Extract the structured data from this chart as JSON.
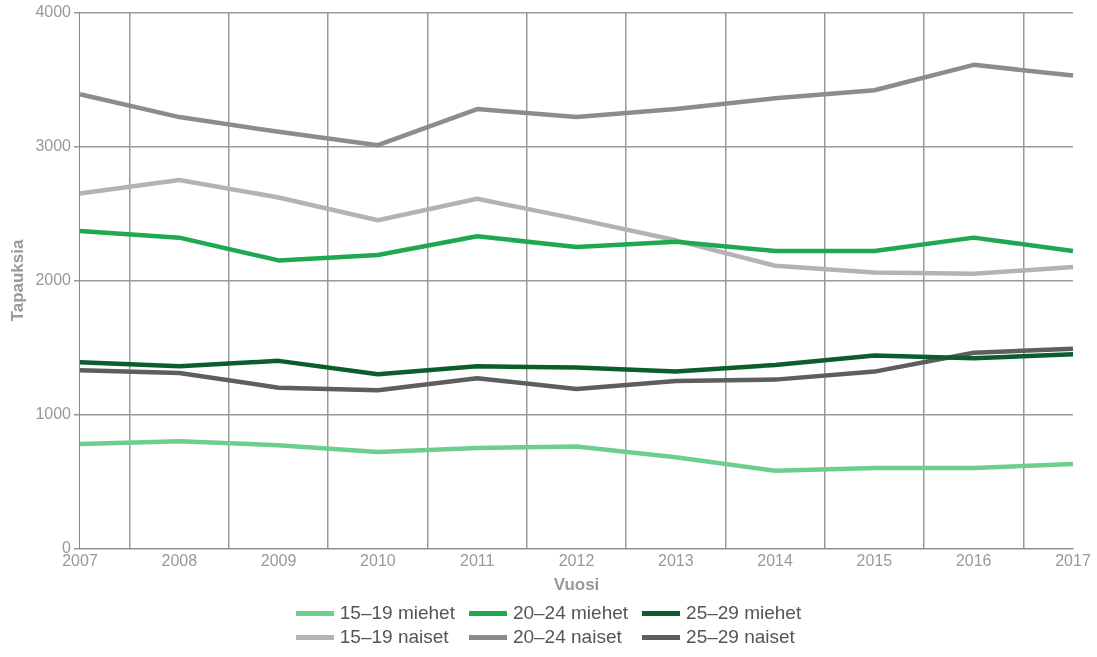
{
  "chart_data": {
    "type": "line",
    "xlabel": "Vuosi",
    "ylabel": "Tapauksia",
    "categories": [
      "2007",
      "2008",
      "2009",
      "2010",
      "2011",
      "2012",
      "2013",
      "2014",
      "2015",
      "2016",
      "2017"
    ],
    "series": [
      {
        "name": "15–19 miehet",
        "color": "#6dcf8f",
        "values": [
          780,
          800,
          770,
          720,
          750,
          760,
          680,
          580,
          600,
          600,
          630
        ]
      },
      {
        "name": "20–24 miehet",
        "color": "#1fa84f",
        "values": [
          2370,
          2320,
          2150,
          2190,
          2330,
          2250,
          2290,
          2220,
          2220,
          2320,
          2220
        ]
      },
      {
        "name": "25–29 miehet",
        "color": "#0b5e2b",
        "values": [
          1390,
          1360,
          1400,
          1300,
          1360,
          1350,
          1320,
          1370,
          1440,
          1420,
          1450
        ]
      },
      {
        "name": "15–19 naiset",
        "color": "#b3b3b3",
        "values": [
          2650,
          2750,
          2620,
          2450,
          2610,
          2460,
          2300,
          2110,
          2060,
          2050,
          2100
        ]
      },
      {
        "name": "20–24 naiset",
        "color": "#8c8c8c",
        "values": [
          3390,
          3220,
          3110,
          3010,
          3280,
          3220,
          3280,
          3360,
          3420,
          3610,
          3530
        ]
      },
      {
        "name": "25–29 naiset",
        "color": "#5e5e5e",
        "values": [
          1330,
          1310,
          1200,
          1180,
          1270,
          1190,
          1250,
          1260,
          1320,
          1460,
          1490
        ]
      }
    ],
    "ylim": [
      0,
      4000
    ],
    "yticks": [
      0,
      1000,
      2000,
      3000,
      4000
    ],
    "grid": true,
    "legend": "bottom",
    "marker": "none",
    "line_style": "solid"
  }
}
